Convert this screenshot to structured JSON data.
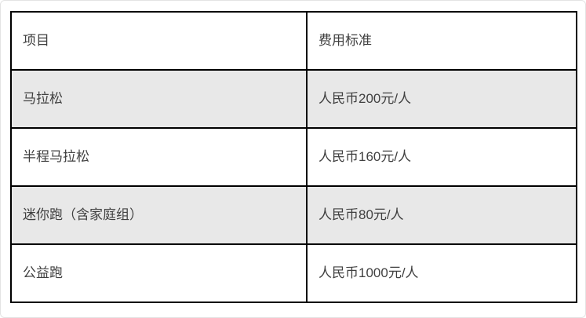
{
  "page": {
    "background": "#ffffff",
    "frame_border": "#e3e3e3"
  },
  "table": {
    "title_semantic": "race-entry-fee-table",
    "headers": [
      "项目",
      "费用标准"
    ],
    "rows": [
      {
        "item": "马拉松",
        "fee": "人民币200元/人",
        "shaded": true
      },
      {
        "item": "半程马拉松",
        "fee": "人民币160元/人",
        "shaded": false
      },
      {
        "item": "迷你跑（含家庭组）",
        "fee": "人民币80元/人",
        "shaded": true
      },
      {
        "item": "公益跑",
        "fee": "人民币1000元/人",
        "shaded": false
      }
    ],
    "colors": {
      "border": "#000000",
      "shaded_row_bg": "#e8e8e8",
      "text": "#404040",
      "header_bg": "#ffffff"
    }
  }
}
